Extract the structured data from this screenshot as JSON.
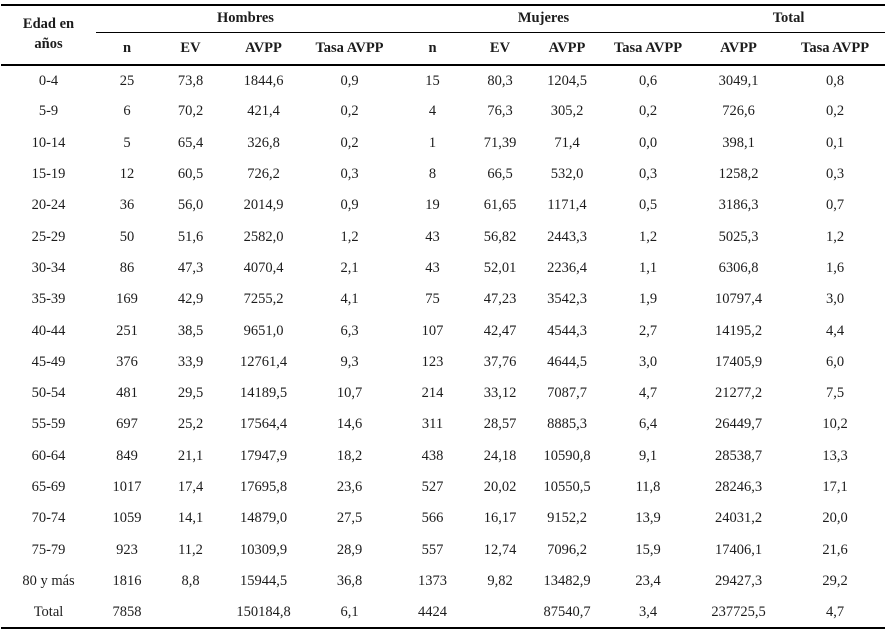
{
  "table": {
    "edad_header": {
      "line1": "Edad en",
      "line2": "años"
    },
    "groups": [
      {
        "label": "Hombres",
        "cols": [
          "n",
          "EV",
          "AVPP",
          "Tasa AVPP"
        ]
      },
      {
        "label": "Mujeres",
        "cols": [
          "n",
          "EV",
          "AVPP",
          "Tasa AVPP"
        ]
      },
      {
        "label": "Total",
        "cols": [
          "AVPP",
          "Tasa AVPP"
        ]
      }
    ],
    "rows": [
      {
        "cells": [
          "0-4",
          "25",
          "73,8",
          "1844,6",
          "0,9",
          "15",
          "80,3",
          "1204,5",
          "0,6",
          "3049,1",
          "0,8"
        ]
      },
      {
        "cells": [
          "5-9",
          "6",
          "70,2",
          "421,4",
          "0,2",
          "4",
          "76,3",
          "305,2",
          "0,2",
          "726,6",
          "0,2"
        ]
      },
      {
        "cells": [
          "10-14",
          "5",
          "65,4",
          "326,8",
          "0,2",
          "1",
          "71,39",
          "71,4",
          "0,0",
          "398,1",
          "0,1"
        ]
      },
      {
        "cells": [
          "15-19",
          "12",
          "60,5",
          "726,2",
          "0,3",
          "8",
          "66,5",
          "532,0",
          "0,3",
          "1258,2",
          "0,3"
        ]
      },
      {
        "cells": [
          "20-24",
          "36",
          "56,0",
          "2014,9",
          "0,9",
          "19",
          "61,65",
          "1171,4",
          "0,5",
          "3186,3",
          "0,7"
        ]
      },
      {
        "cells": [
          "25-29",
          "50",
          "51,6",
          "2582,0",
          "1,2",
          "43",
          "56,82",
          "2443,3",
          "1,2",
          "5025,3",
          "1,2"
        ]
      },
      {
        "cells": [
          "30-34",
          "86",
          "47,3",
          "4070,4",
          "2,1",
          "43",
          "52,01",
          "2236,4",
          "1,1",
          "6306,8",
          "1,6"
        ]
      },
      {
        "cells": [
          "35-39",
          "169",
          "42,9",
          "7255,2",
          "4,1",
          "75",
          "47,23",
          "3542,3",
          "1,9",
          "10797,4",
          "3,0"
        ]
      },
      {
        "cells": [
          "40-44",
          "251",
          "38,5",
          "9651,0",
          "6,3",
          "107",
          "42,47",
          "4544,3",
          "2,7",
          "14195,2",
          "4,4"
        ]
      },
      {
        "cells": [
          "45-49",
          "376",
          "33,9",
          "12761,4",
          "9,3",
          "123",
          "37,76",
          "4644,5",
          "3,0",
          "17405,9",
          "6,0"
        ]
      },
      {
        "cells": [
          "50-54",
          "481",
          "29,5",
          "14189,5",
          "10,7",
          "214",
          "33,12",
          "7087,7",
          "4,7",
          "21277,2",
          "7,5"
        ]
      },
      {
        "cells": [
          "55-59",
          "697",
          "25,2",
          "17564,4",
          "14,6",
          "311",
          "28,57",
          "8885,3",
          "6,4",
          "26449,7",
          "10,2"
        ]
      },
      {
        "cells": [
          "60-64",
          "849",
          "21,1",
          "17947,9",
          "18,2",
          "438",
          "24,18",
          "10590,8",
          "9,1",
          "28538,7",
          "13,3"
        ]
      },
      {
        "cells": [
          "65-69",
          "1017",
          "17,4",
          "17695,8",
          "23,6",
          "527",
          "20,02",
          "10550,5",
          "11,8",
          "28246,3",
          "17,1"
        ]
      },
      {
        "cells": [
          "70-74",
          "1059",
          "14,1",
          "14879,0",
          "27,5",
          "566",
          "16,17",
          "9152,2",
          "13,9",
          "24031,2",
          "20,0"
        ]
      },
      {
        "cells": [
          "75-79",
          "923",
          "11,2",
          "10309,9",
          "28,9",
          "557",
          "12,74",
          "7096,2",
          "15,9",
          "17406,1",
          "21,6"
        ]
      },
      {
        "cells": [
          "80 y más",
          "1816",
          "8,8",
          "15944,5",
          "36,8",
          "1373",
          "9,82",
          "13482,9",
          "23,4",
          "29427,3",
          "29,2"
        ]
      },
      {
        "cells": [
          "Total",
          "7858",
          "",
          "150184,8",
          "6,1",
          "4424",
          "",
          "87540,7",
          "3,4",
          "237725,5",
          "4,7"
        ]
      }
    ]
  }
}
